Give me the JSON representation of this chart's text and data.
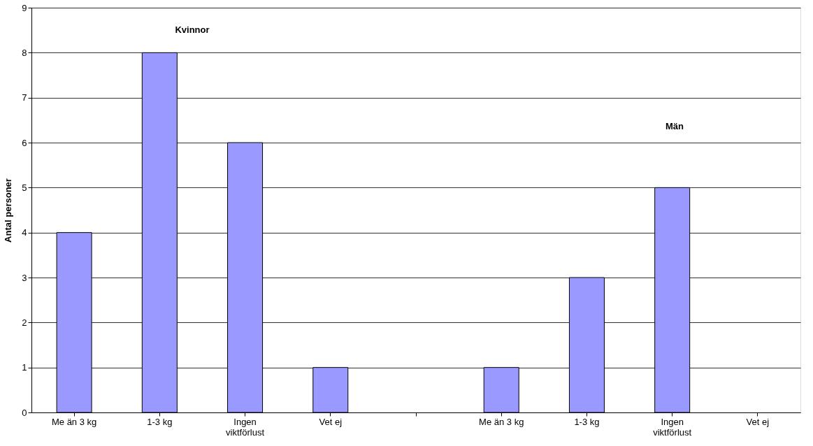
{
  "chart_data": {
    "type": "bar",
    "ylabel": "Antal personer",
    "categories": [
      "Me än 3 kg",
      "1-3 kg",
      "Ingen viktförlust",
      "Vet ej",
      null,
      "Me än 3 kg",
      "1-3 kg",
      "Ingen viktförlust",
      "Vet ej"
    ],
    "values": [
      4,
      8,
      6,
      1,
      null,
      1,
      3,
      5,
      null
    ],
    "color": "#9999ff",
    "ylim": [
      0,
      9
    ],
    "yticks": [
      0,
      1,
      2,
      3,
      4,
      5,
      6,
      7,
      8,
      9
    ],
    "grid": "y",
    "annotations": [
      "Kvinnor",
      "Män"
    ]
  }
}
